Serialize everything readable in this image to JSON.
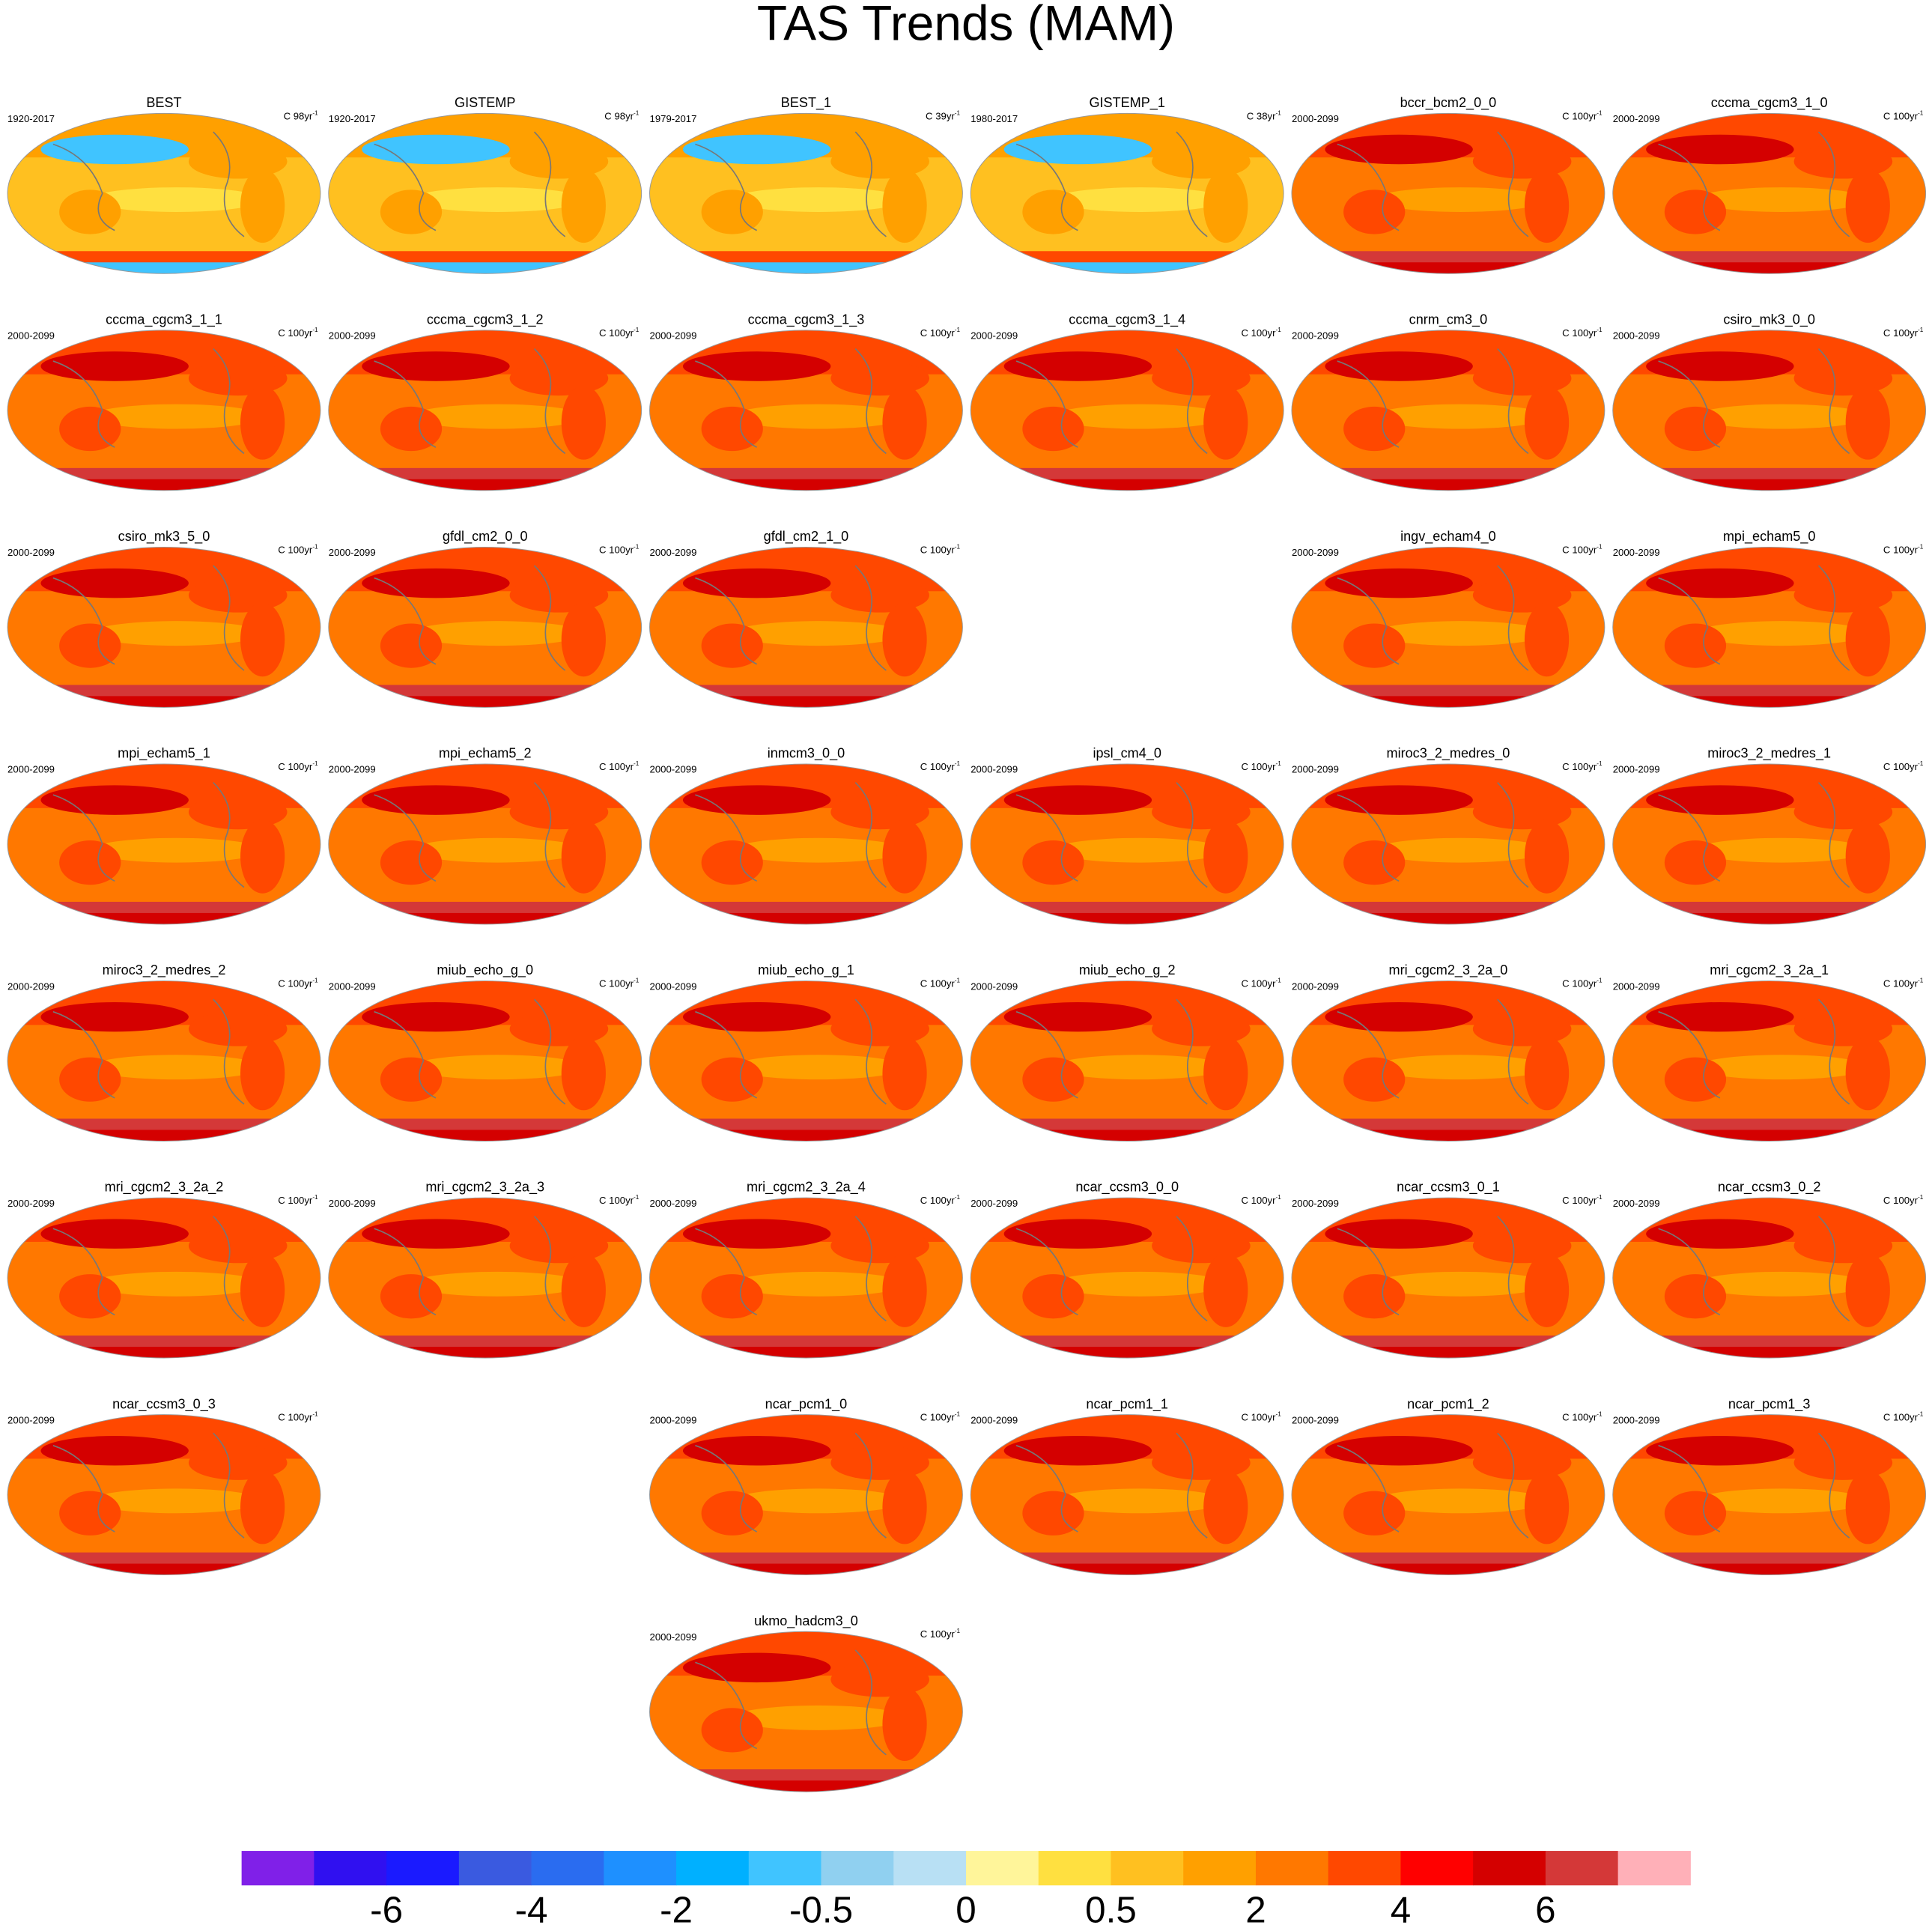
{
  "title": "TAS Trends (MAM)",
  "panels": {
    "rows": [
      [
        {
          "title": "BEST",
          "period": "1920-2017",
          "unit": "C 98yr",
          "unit_exp": "-1"
        },
        {
          "title": "GISTEMP",
          "period": "1920-2017",
          "unit": "C 98yr",
          "unit_exp": "-1"
        },
        {
          "title": "BEST_1",
          "period": "1979-2017",
          "unit": "C 39yr",
          "unit_exp": "-1"
        },
        {
          "title": "GISTEMP_1",
          "period": "1980-2017",
          "unit": "C 38yr",
          "unit_exp": "-1"
        },
        {
          "title": "bccr_bcm2_0_0",
          "period": "2000-2099",
          "unit": "C 100yr",
          "unit_exp": "-1"
        },
        {
          "title": "cccma_cgcm3_1_0",
          "period": "2000-2099",
          "unit": "C 100yr",
          "unit_exp": "-1"
        }
      ],
      [
        {
          "title": "cccma_cgcm3_1_1",
          "period": "2000-2099",
          "unit": "C 100yr",
          "unit_exp": "-1"
        },
        {
          "title": "cccma_cgcm3_1_2",
          "period": "2000-2099",
          "unit": "C 100yr",
          "unit_exp": "-1"
        },
        {
          "title": "cccma_cgcm3_1_3",
          "period": "2000-2099",
          "unit": "C 100yr",
          "unit_exp": "-1"
        },
        {
          "title": "cccma_cgcm3_1_4",
          "period": "2000-2099",
          "unit": "C 100yr",
          "unit_exp": "-1"
        },
        {
          "title": "cnrm_cm3_0",
          "period": "2000-2099",
          "unit": "C 100yr",
          "unit_exp": "-1"
        },
        {
          "title": "csiro_mk3_0_0",
          "period": "2000-2099",
          "unit": "C 100yr",
          "unit_exp": "-1"
        }
      ],
      [
        {
          "title": "csiro_mk3_5_0",
          "period": "2000-2099",
          "unit": "C 100yr",
          "unit_exp": "-1"
        },
        {
          "title": "gfdl_cm2_0_0",
          "period": "2000-2099",
          "unit": "C 100yr",
          "unit_exp": "-1"
        },
        {
          "title": "gfdl_cm2_1_0",
          "period": "2000-2099",
          "unit": "C 100yr",
          "unit_exp": "-1"
        },
        null,
        {
          "title": "ingv_echam4_0",
          "period": "2000-2099",
          "unit": "C 100yr",
          "unit_exp": "-1"
        },
        {
          "title": "mpi_echam5_0",
          "period": "2000-2099",
          "unit": "C 100yr",
          "unit_exp": "-1"
        }
      ],
      [
        {
          "title": "mpi_echam5_1",
          "period": "2000-2099",
          "unit": "C 100yr",
          "unit_exp": "-1"
        },
        {
          "title": "mpi_echam5_2",
          "period": "2000-2099",
          "unit": "C 100yr",
          "unit_exp": "-1"
        },
        {
          "title": "inmcm3_0_0",
          "period": "2000-2099",
          "unit": "C 100yr",
          "unit_exp": "-1"
        },
        {
          "title": "ipsl_cm4_0",
          "period": "2000-2099",
          "unit": "C 100yr",
          "unit_exp": "-1"
        },
        {
          "title": "miroc3_2_medres_0",
          "period": "2000-2099",
          "unit": "C 100yr",
          "unit_exp": "-1"
        },
        {
          "title": "miroc3_2_medres_1",
          "period": "2000-2099",
          "unit": "C 100yr",
          "unit_exp": "-1"
        }
      ],
      [
        {
          "title": "miroc3_2_medres_2",
          "period": "2000-2099",
          "unit": "C 100yr",
          "unit_exp": "-1"
        },
        {
          "title": "miub_echo_g_0",
          "period": "2000-2099",
          "unit": "C 100yr",
          "unit_exp": "-1"
        },
        {
          "title": "miub_echo_g_1",
          "period": "2000-2099",
          "unit": "C 100yr",
          "unit_exp": "-1"
        },
        {
          "title": "miub_echo_g_2",
          "period": "2000-2099",
          "unit": "C 100yr",
          "unit_exp": "-1"
        },
        {
          "title": "mri_cgcm2_3_2a_0",
          "period": "2000-2099",
          "unit": "C 100yr",
          "unit_exp": "-1"
        },
        {
          "title": "mri_cgcm2_3_2a_1",
          "period": "2000-2099",
          "unit": "C 100yr",
          "unit_exp": "-1"
        }
      ],
      [
        {
          "title": "mri_cgcm2_3_2a_2",
          "period": "2000-2099",
          "unit": "C 100yr",
          "unit_exp": "-1"
        },
        {
          "title": "mri_cgcm2_3_2a_3",
          "period": "2000-2099",
          "unit": "C 100yr",
          "unit_exp": "-1"
        },
        {
          "title": "mri_cgcm2_3_2a_4",
          "period": "2000-2099",
          "unit": "C 100yr",
          "unit_exp": "-1"
        },
        {
          "title": "ncar_ccsm3_0_0",
          "period": "2000-2099",
          "unit": "C 100yr",
          "unit_exp": "-1"
        },
        {
          "title": "ncar_ccsm3_0_1",
          "period": "2000-2099",
          "unit": "C 100yr",
          "unit_exp": "-1"
        },
        {
          "title": "ncar_ccsm3_0_2",
          "period": "2000-2099",
          "unit": "C 100yr",
          "unit_exp": "-1"
        }
      ],
      [
        {
          "title": "ncar_ccsm3_0_3",
          "period": "2000-2099",
          "unit": "C 100yr",
          "unit_exp": "-1"
        },
        null,
        {
          "title": "ncar_pcm1_0",
          "period": "2000-2099",
          "unit": "C 100yr",
          "unit_exp": "-1"
        },
        {
          "title": "ncar_pcm1_1",
          "period": "2000-2099",
          "unit": "C 100yr",
          "unit_exp": "-1"
        },
        {
          "title": "ncar_pcm1_2",
          "period": "2000-2099",
          "unit": "C 100yr",
          "unit_exp": "-1"
        },
        {
          "title": "ncar_pcm1_3",
          "period": "2000-2099",
          "unit": "C 100yr",
          "unit_exp": "-1"
        }
      ],
      [
        null,
        null,
        {
          "title": "ukmo_hadcm3_0",
          "period": "2000-2099",
          "unit": "C 100yr",
          "unit_exp": "-1"
        }
      ]
    ]
  },
  "colorbar": {
    "colors": [
      "#8020e8",
      "#3010f0",
      "#1a1aff",
      "#3a5ae0",
      "#2a6cf0",
      "#1e90ff",
      "#00b0ff",
      "#40c4ff",
      "#90d0f0",
      "#b8e0f4",
      "#fff59a",
      "#ffe040",
      "#ffc020",
      "#ffa000",
      "#ff7800",
      "#ff4800",
      "#ff0000",
      "#d40000",
      "#d43838",
      "#ffb0b8"
    ],
    "labels": [
      -6,
      -4,
      -2,
      -0.5,
      0,
      0.5,
      2,
      4,
      6
    ]
  }
}
